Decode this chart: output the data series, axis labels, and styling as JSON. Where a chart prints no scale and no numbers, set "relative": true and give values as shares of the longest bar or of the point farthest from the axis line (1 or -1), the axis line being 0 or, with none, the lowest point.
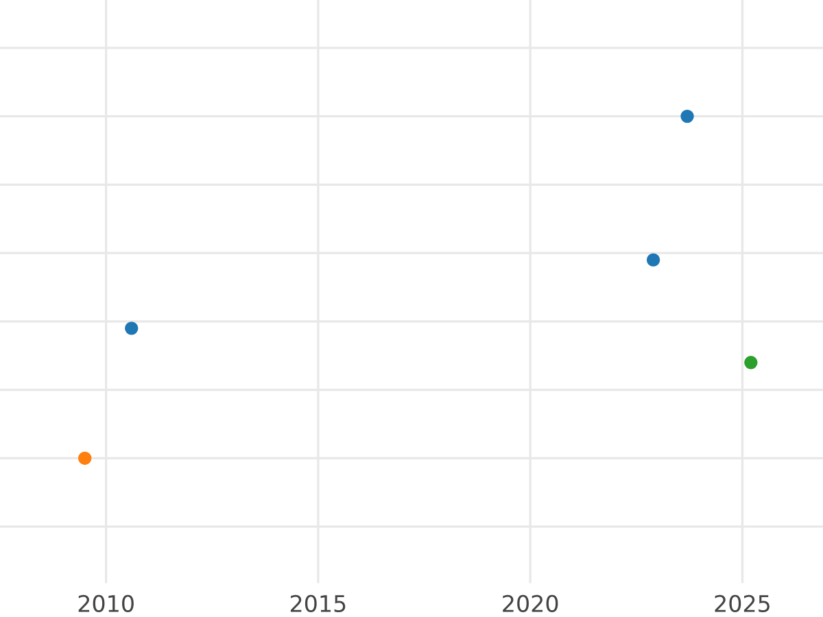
{
  "chart_data": {
    "type": "scatter",
    "relative": true,
    "grid": true,
    "marker": "circle",
    "tick_labels": "x",
    "xlim": [
      2007.5,
      2026.9
    ],
    "xticks": [
      2010,
      2015,
      2020,
      2025
    ],
    "series": [
      {
        "color": "#1f77b4",
        "x": [
          2010.6,
          2022.9,
          2023.7
        ],
        "values": [
          0.38,
          0.58,
          1
        ]
      },
      {
        "color": "#ff7f0e",
        "x": [
          2009.5
        ],
        "values": [
          0
        ]
      },
      {
        "color": "#2ca02c",
        "x": [
          2025.2
        ],
        "values": [
          0.28
        ]
      }
    ]
  }
}
